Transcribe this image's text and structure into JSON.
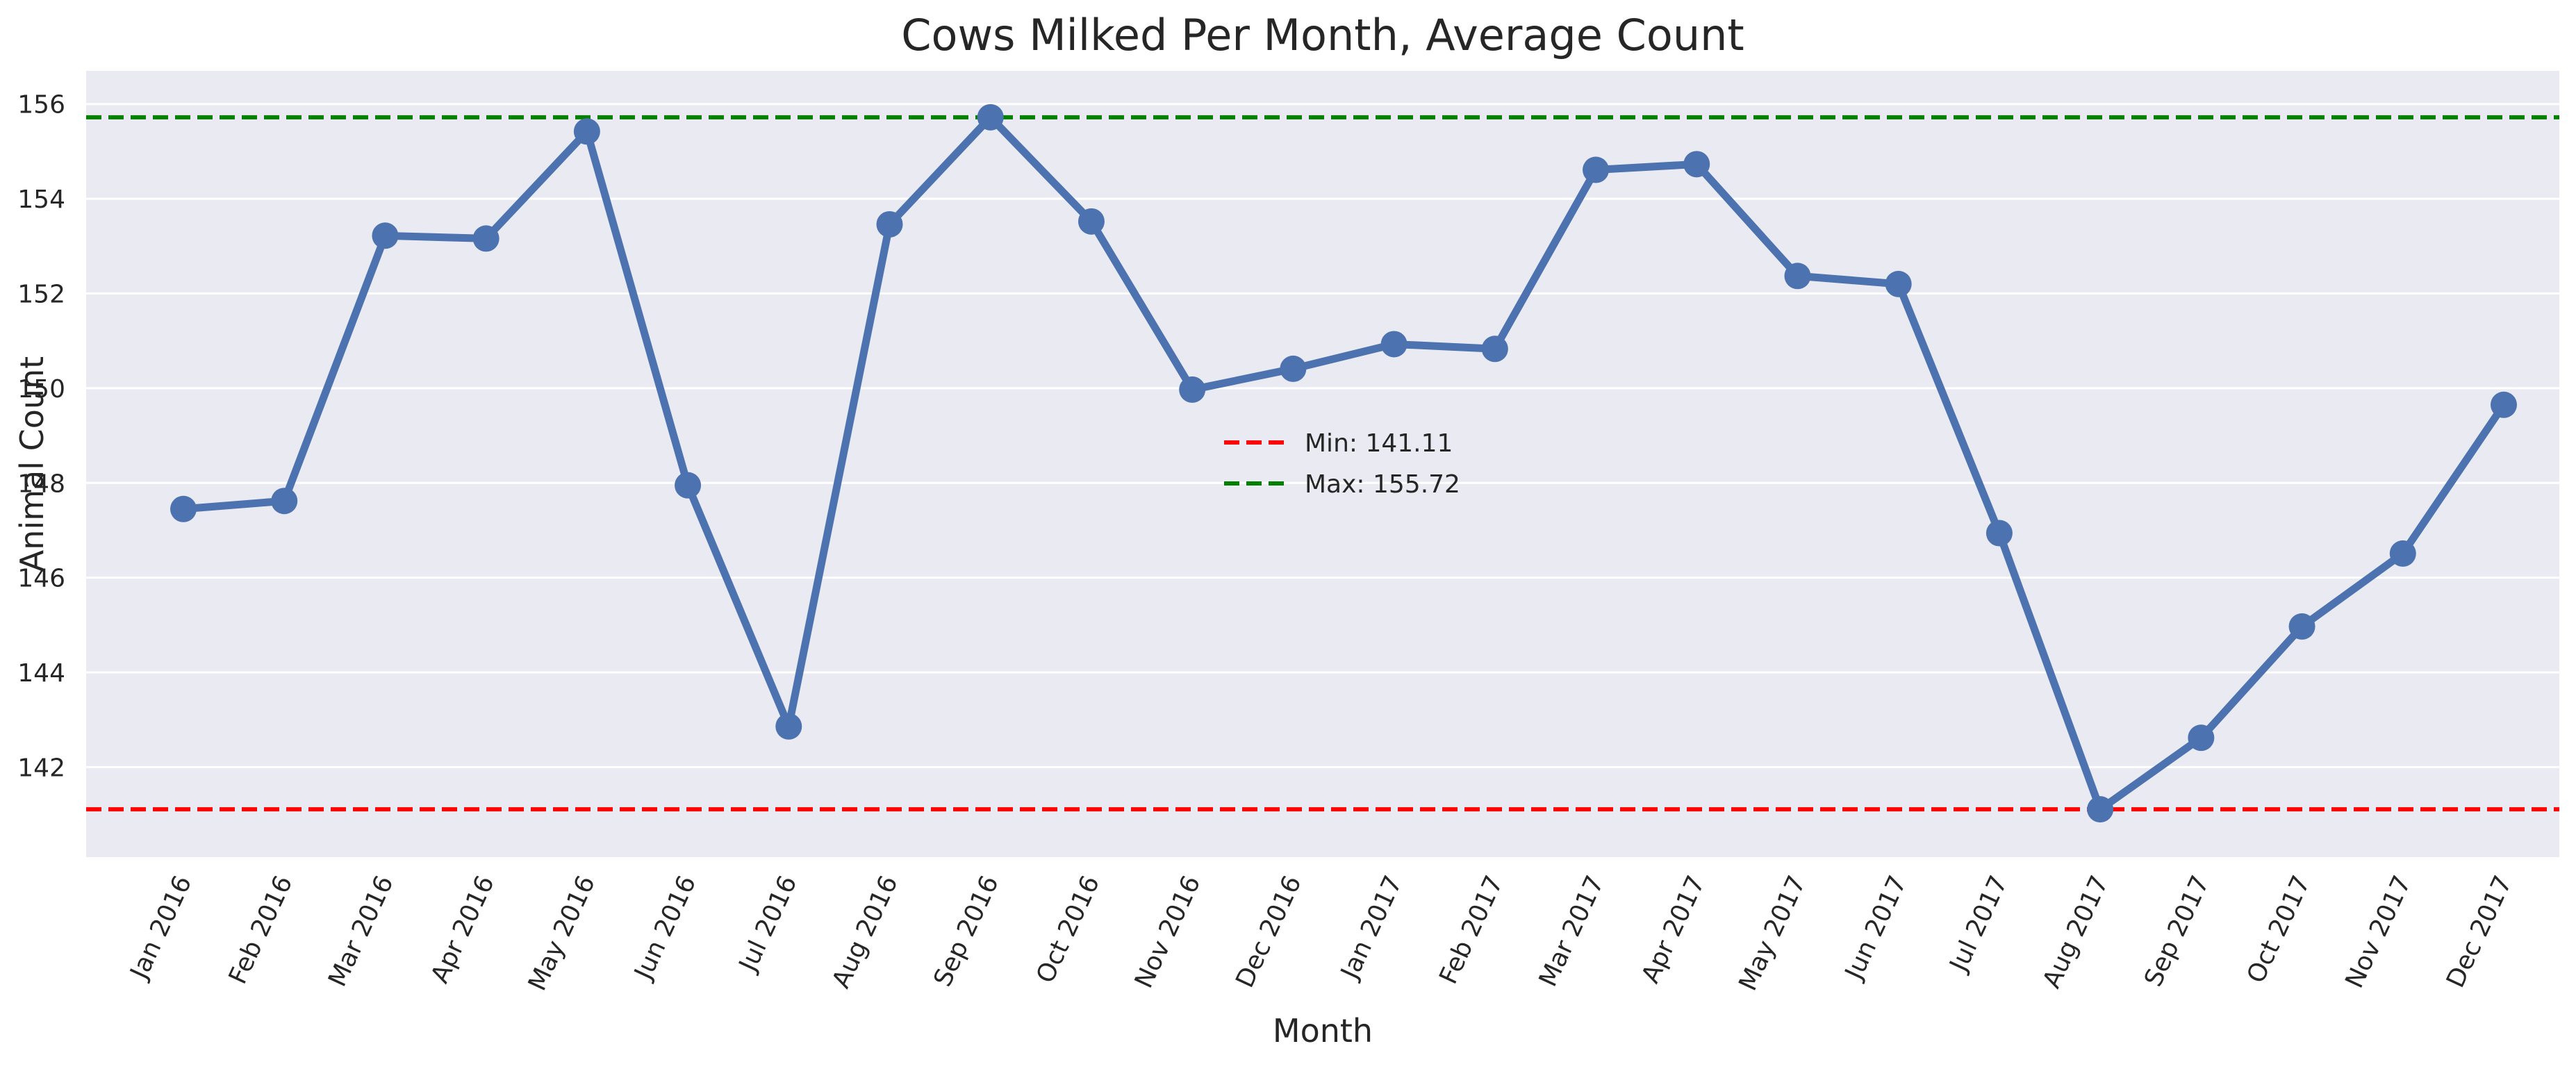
{
  "chart_data": {
    "type": "line",
    "title": "Cows Milked Per Month, Average Count",
    "xlabel": "Month",
    "ylabel": "Animal Count",
    "categories": [
      "Jan 2016",
      "Feb 2016",
      "Mar 2016",
      "Apr 2016",
      "May 2016",
      "Jun 2016",
      "Jul 2016",
      "Aug 2016",
      "Sep 2016",
      "Oct 2016",
      "Nov 2016",
      "Dec 2016",
      "Jan 2017",
      "Feb 2017",
      "Mar 2017",
      "Apr 2017",
      "May 2017",
      "Jun 2017",
      "Jul 2017",
      "Aug 2017",
      "Sep 2017",
      "Oct 2017",
      "Nov 2017",
      "Dec 2017"
    ],
    "series": [
      {
        "color": "#4c72b0",
        "values": [
          147.45,
          147.62,
          153.22,
          153.16,
          155.42,
          147.95,
          142.86,
          153.46,
          155.72,
          153.52,
          149.97,
          150.41,
          150.93,
          150.83,
          154.61,
          154.73,
          152.37,
          152.2,
          146.94,
          141.11,
          142.62,
          144.97,
          146.51,
          149.65
        ]
      }
    ],
    "reference_lines": [
      {
        "label": "Min: 141.11",
        "value": 141.11,
        "color": "#ff0000",
        "style": "dashed"
      },
      {
        "label": "Max: 155.72",
        "value": 155.72,
        "color": "#008000",
        "style": "dashed"
      }
    ],
    "yticks": [
      "142",
      "144",
      "146",
      "148",
      "150",
      "152",
      "154",
      "156"
    ],
    "ylim": [
      140.1,
      156.7
    ],
    "grid": "horizontal",
    "legend_position": "center",
    "background": "#eaeaf2"
  }
}
